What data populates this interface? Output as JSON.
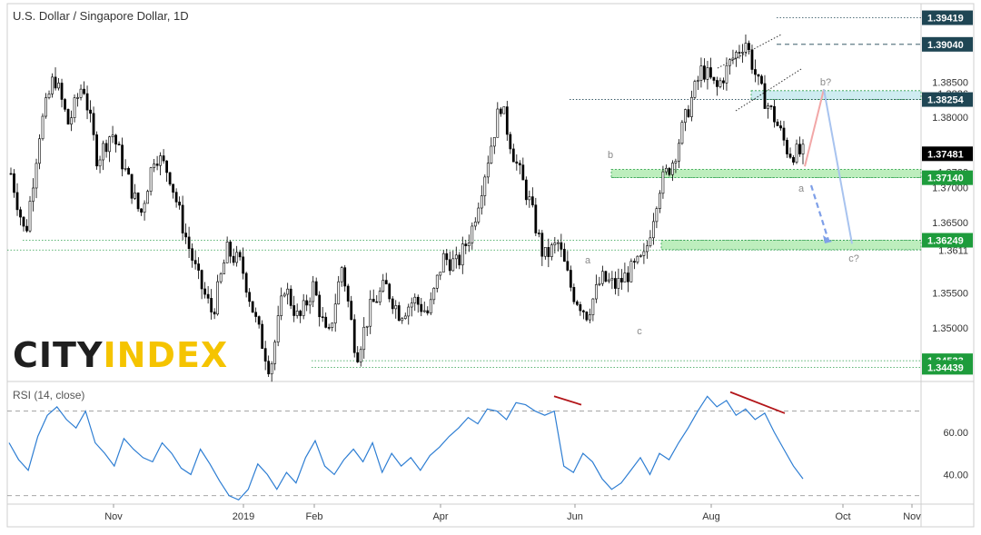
{
  "header": {
    "title": "U.S. Dollar / Singapore Dollar, 1D"
  },
  "rsi_title": "RSI (14, close)",
  "logo": {
    "part1": "CITY",
    "part2": "INDEX"
  },
  "colors": {
    "up": "#ffffff",
    "down": "#000000",
    "support_zone": "#86e086",
    "resistance_zone": "#a6dde6",
    "rsi_line": "#2e7ed3",
    "divergence": "#b3161a",
    "tag_dark": "#1f4654",
    "tag_green": "#1e9c3c",
    "projection_up": "#f2a7a7",
    "projection_down": "#a8c3ef"
  },
  "chart_data": [
    {
      "type": "candlestick",
      "title": "U.S. Dollar / Singapore Dollar, 1D",
      "ylim": [
        1.3425,
        1.3962
      ],
      "x_ticks": [
        "Nov",
        "2019",
        "Feb",
        "Apr",
        "Jun",
        "Aug",
        "Oct",
        "Nov"
      ],
      "y_ticks": [
        1.35,
        1.355,
        1.365,
        1.37,
        1.38,
        1.385
      ],
      "y_tick_labels": [
        "1.35000",
        "1.35500",
        "1.36500",
        "1.37000",
        "1.38000",
        "1.38500"
      ],
      "close_path": [
        1.372,
        1.363,
        1.378,
        1.386,
        1.379,
        1.385,
        1.374,
        1.378,
        1.372,
        1.366,
        1.375,
        1.372,
        1.364,
        1.357,
        1.352,
        1.361,
        1.359,
        1.351,
        1.344,
        1.356,
        1.351,
        1.356,
        1.348,
        1.359,
        1.346,
        1.353,
        1.356,
        1.352,
        1.354,
        1.352,
        1.36,
        1.359,
        1.364,
        1.373,
        1.382,
        1.374,
        1.368,
        1.36,
        1.362,
        1.355,
        1.352,
        1.357,
        1.356,
        1.358,
        1.36,
        1.37,
        1.374,
        1.381,
        1.387,
        1.384,
        1.388,
        1.391,
        1.384,
        1.38,
        1.375,
        1.3748
      ],
      "levels": [
        {
          "value": 1.39419,
          "label": "1.39419",
          "tag": "dark",
          "style": "dotted"
        },
        {
          "value": 1.3904,
          "label": "1.39040",
          "tag": "dark",
          "style": "dashed"
        },
        {
          "value": 1.38254,
          "label": "1.38254",
          "tag": "dark",
          "style": "dotted"
        },
        {
          "value": 1.37481,
          "label": "1.37481",
          "tag": "black",
          "style": "none"
        },
        {
          "value": 1.3714,
          "label": "1.37140",
          "tag": "green",
          "style": "dotted"
        },
        {
          "value": 1.36249,
          "label": "1.36249",
          "tag": "green",
          "style": "dotted"
        },
        {
          "value": 1.34533,
          "label": "1.34533",
          "tag": "green",
          "style": "dotted"
        },
        {
          "value": 1.34439,
          "label": "1.34439",
          "tag": "green",
          "style": "dotted"
        }
      ],
      "partial_labels": [
        "1.3826",
        "1.3722",
        "1.3611"
      ],
      "zones": [
        {
          "name": "resistance",
          "from": 1.38254,
          "to": 1.3838
        },
        {
          "name": "support-1",
          "from": 1.3714,
          "to": 1.3726
        },
        {
          "name": "support-2",
          "from": 1.36115,
          "to": 1.36249
        }
      ],
      "wave_labels": [
        {
          "text": "b",
          "x": "Jun",
          "price": 1.3775
        },
        {
          "text": "a",
          "x": "May",
          "price": 1.3605
        },
        {
          "text": "c",
          "x": "Jul",
          "price": 1.3485
        },
        {
          "text": "a",
          "x": "Aug",
          "price": 1.3695
        },
        {
          "text": "b?",
          "x": "Sep",
          "price": 1.3854
        },
        {
          "text": "c?",
          "x": "Oct",
          "price": 1.36
        }
      ],
      "projection": {
        "a": 1.373,
        "b": 1.384,
        "c": 1.362,
        "a_alt_target": 1.3625
      }
    },
    {
      "type": "line",
      "title": "RSI (14, close)",
      "ylim": [
        26,
        84
      ],
      "y_ticks": [
        40,
        60
      ],
      "y_tick_labels": [
        "40.00",
        "60.00"
      ],
      "bands": [
        70,
        30
      ],
      "values": [
        55,
        47,
        42,
        58,
        68,
        72,
        66,
        62,
        70,
        55,
        50,
        44,
        57,
        52,
        48,
        46,
        55,
        50,
        43,
        40,
        52,
        45,
        37,
        30,
        28,
        33,
        45,
        40,
        33,
        41,
        36,
        48,
        56,
        44,
        40,
        47,
        52,
        46,
        55,
        41,
        50,
        44,
        48,
        42,
        49,
        53,
        58,
        62,
        67,
        64,
        71,
        70,
        66,
        74,
        73,
        70,
        68,
        70,
        44,
        41,
        50,
        46,
        38,
        33,
        36,
        42,
        48,
        40,
        50,
        47,
        55,
        62,
        70,
        77,
        72,
        75,
        68,
        71,
        66,
        69,
        60,
        52,
        44,
        38
      ],
      "divergence_segments": [
        {
          "name": "divergence-1",
          "from": 77,
          "to": 73
        },
        {
          "name": "divergence-2",
          "from": 79,
          "to": 69
        }
      ]
    }
  ]
}
